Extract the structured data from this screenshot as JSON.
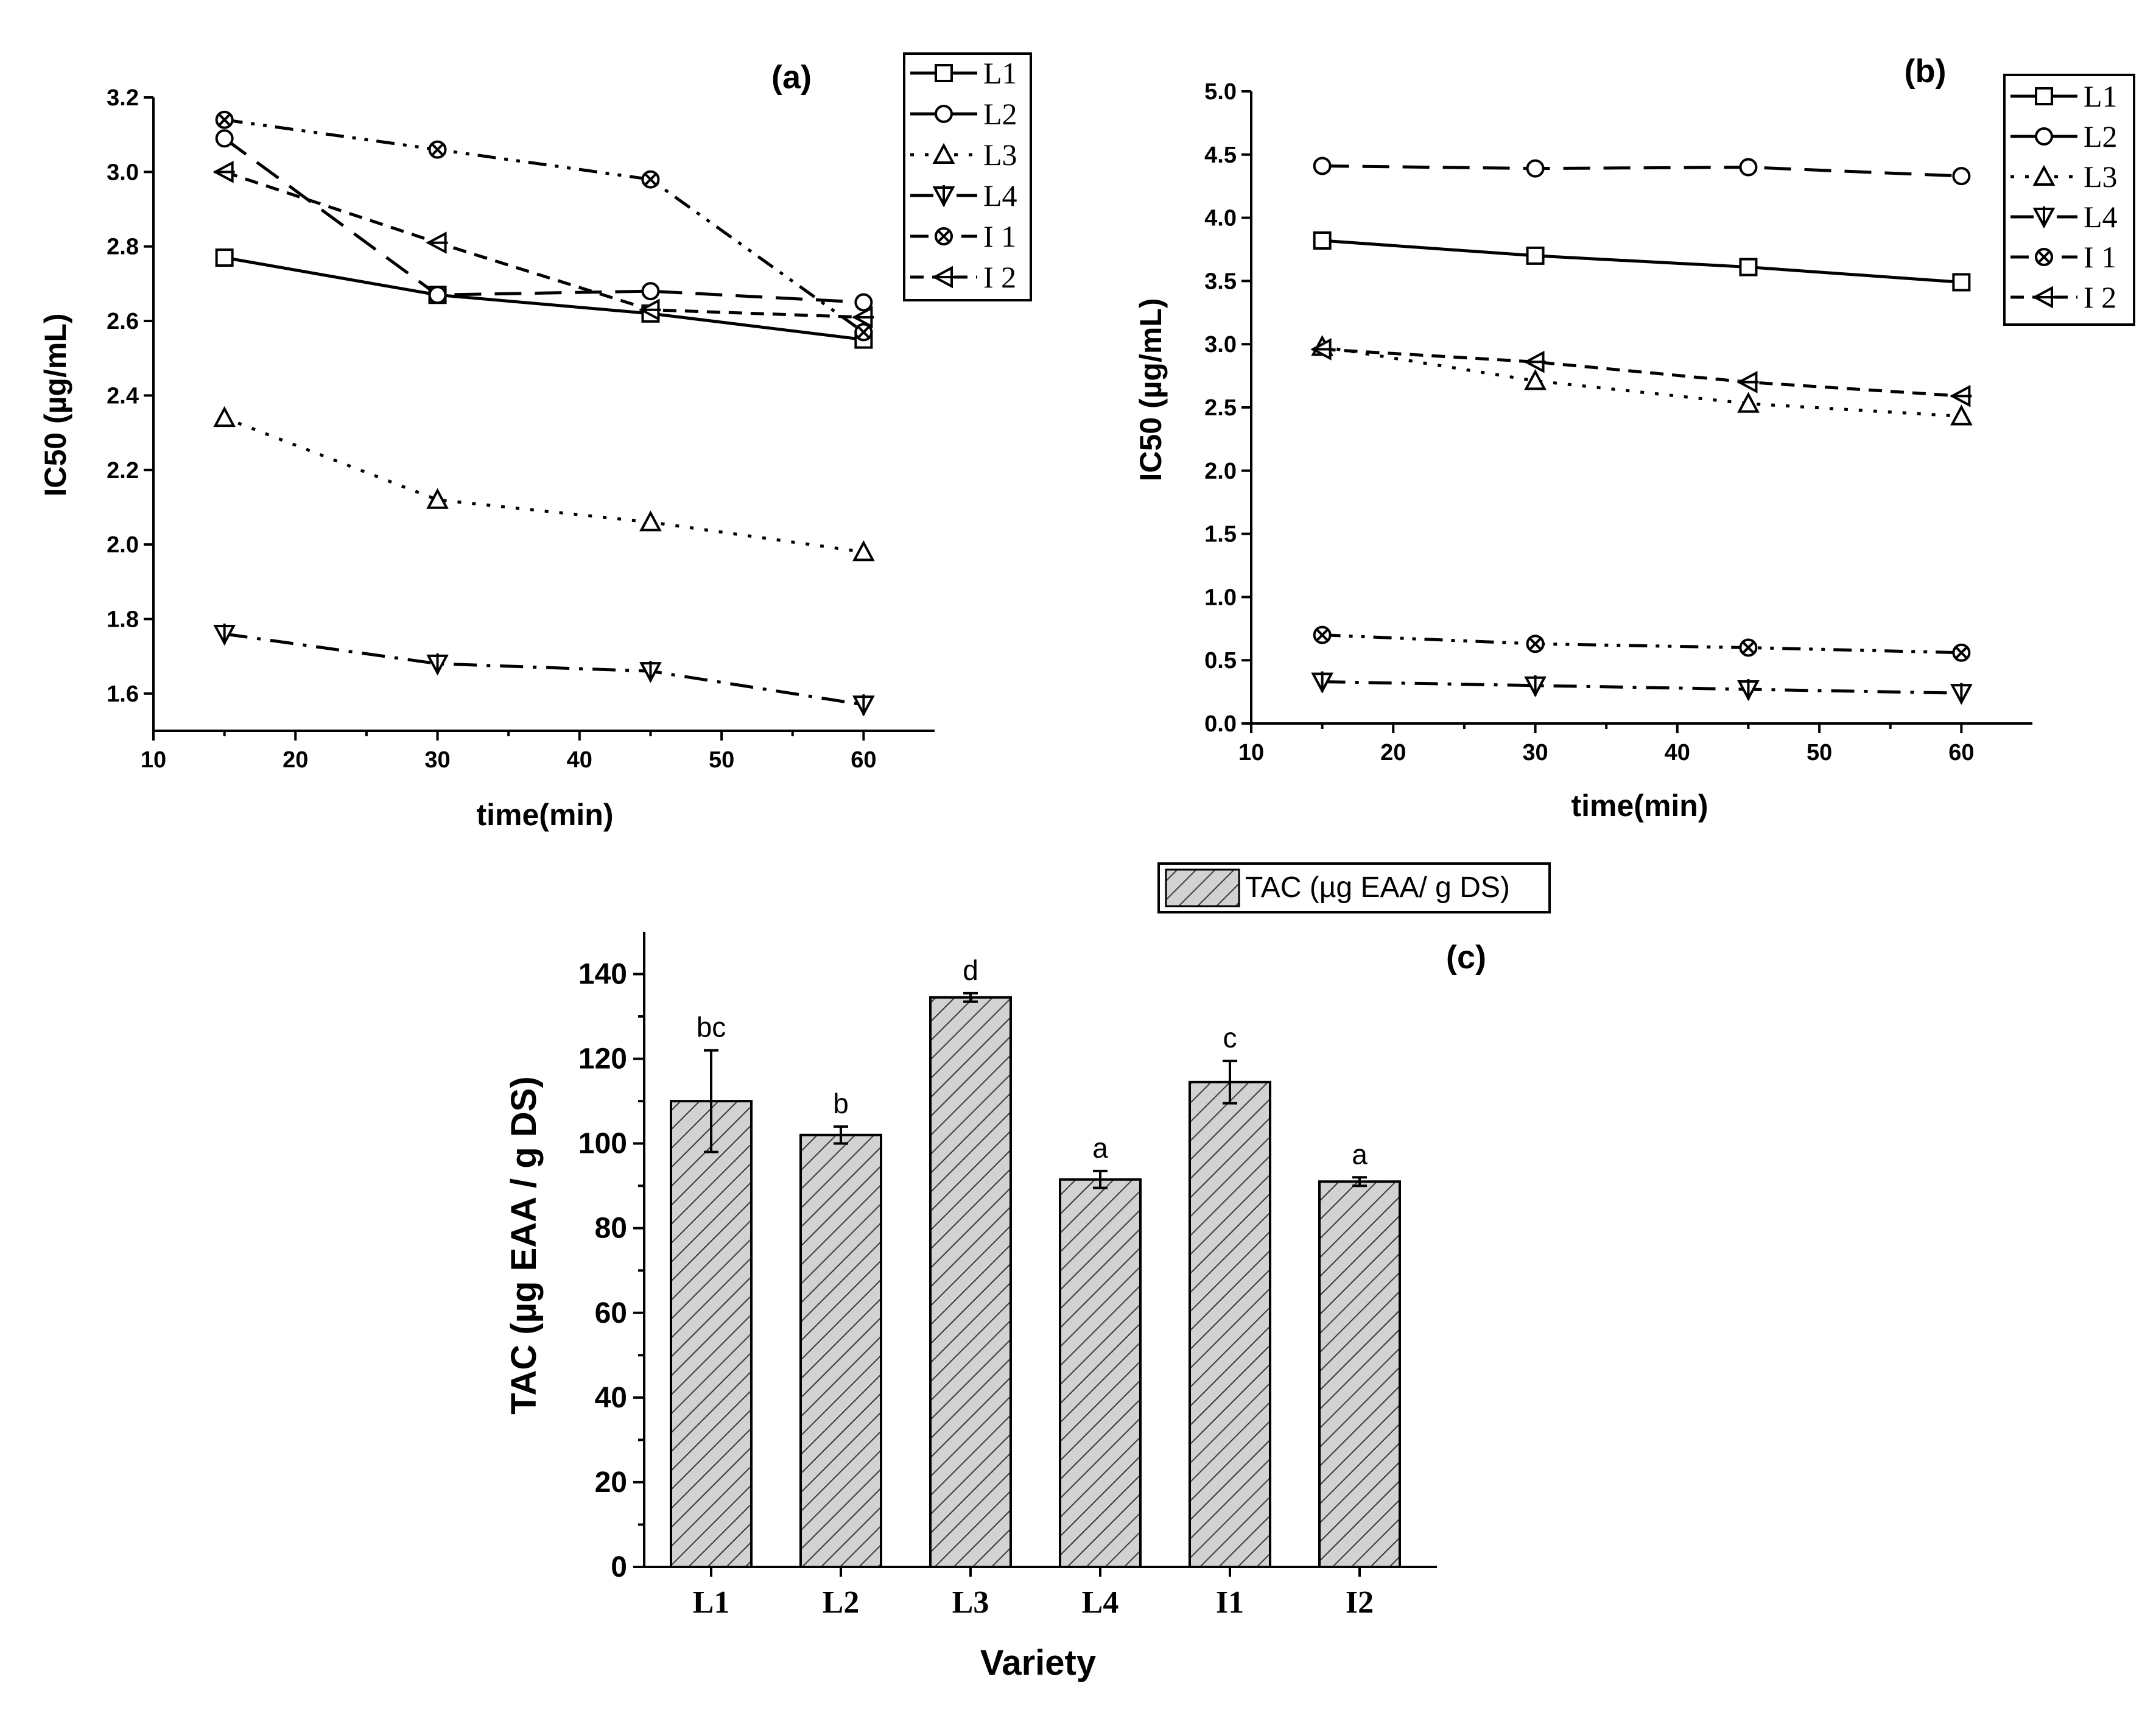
{
  "chart_data": [
    {
      "type": "line",
      "title": "(a)",
      "xlabel": "time(min)",
      "ylabel": "IC50 (µg/mL)",
      "xlim": [
        10,
        65
      ],
      "ylim": [
        1.5,
        3.2
      ],
      "xticks": [
        10,
        20,
        30,
        40,
        50,
        60
      ],
      "yticks": [
        1.6,
        1.8,
        2.0,
        2.2,
        2.4,
        2.6,
        2.8,
        3.0,
        3.2
      ],
      "ytick_labels": [
        "1.6",
        "1.8",
        "2.0",
        "2.2",
        "2.4",
        "2.6",
        "2.8",
        "3.0",
        "3.2"
      ],
      "x": [
        15,
        30,
        45,
        60
      ],
      "legend_position": "top-right",
      "series": [
        {
          "name": "L1",
          "values": [
            2.77,
            2.67,
            2.62,
            2.55
          ],
          "marker": "square",
          "dash": "solid"
        },
        {
          "name": "L2",
          "values": [
            3.09,
            2.67,
            2.68,
            2.65
          ],
          "marker": "circle",
          "dash": "dash"
        },
        {
          "name": "L3",
          "values": [
            2.34,
            2.12,
            2.06,
            1.98
          ],
          "marker": "triangle",
          "dash": "dot"
        },
        {
          "name": "L4",
          "values": [
            1.76,
            1.68,
            1.66,
            1.57
          ],
          "marker": "tridown",
          "dash": "dashdot"
        },
        {
          "name": "I 1",
          "values": [
            3.14,
            3.06,
            2.98,
            2.57
          ],
          "marker": "xcircle",
          "dash": "dashdotdot"
        },
        {
          "name": "I 2",
          "values": [
            3.0,
            2.81,
            2.63,
            2.61
          ],
          "marker": "tleft",
          "dash": "shortdash"
        }
      ]
    },
    {
      "type": "line",
      "title": "(b)",
      "xlabel": "time(min)",
      "ylabel": "IC50 (µg/mL)",
      "xlim": [
        10,
        65
      ],
      "ylim": [
        0,
        5
      ],
      "xticks": [
        10,
        20,
        30,
        40,
        50,
        60
      ],
      "yticks": [
        0,
        0.5,
        1.0,
        1.5,
        2.0,
        2.5,
        3.0,
        3.5,
        4.0,
        4.5,
        5.0
      ],
      "ytick_labels": [
        "0.0",
        "0.5",
        "1.0",
        "1.5",
        "2.0",
        "2.5",
        "3.0",
        "3.5",
        "4.0",
        "4.5",
        "5.0"
      ],
      "x": [
        15,
        30,
        45,
        60
      ],
      "legend_position": "top-right",
      "series": [
        {
          "name": "L1",
          "values": [
            3.82,
            3.7,
            3.61,
            3.49
          ],
          "marker": "square",
          "dash": "solid"
        },
        {
          "name": "L2",
          "values": [
            4.41,
            4.39,
            4.4,
            4.33
          ],
          "marker": "circle",
          "dash": "dash"
        },
        {
          "name": "L3",
          "values": [
            2.98,
            2.71,
            2.53,
            2.43
          ],
          "marker": "triangle",
          "dash": "dot"
        },
        {
          "name": "L4",
          "values": [
            0.33,
            0.3,
            0.27,
            0.24
          ],
          "marker": "tridown",
          "dash": "dashdot"
        },
        {
          "name": "I 1",
          "values": [
            0.7,
            0.63,
            0.6,
            0.56
          ],
          "marker": "xcircle",
          "dash": "dashdotdot"
        },
        {
          "name": "I 2",
          "values": [
            2.96,
            2.86,
            2.7,
            2.59
          ],
          "marker": "tleft",
          "dash": "shortdash"
        }
      ]
    },
    {
      "type": "bar",
      "title": "(c)",
      "xlabel": "Variety",
      "ylabel": "TAC (µg EAA / g DS)",
      "legend_label": "TAC (µg EAA/ g DS)",
      "legend_position": "top-center",
      "ylim": [
        0,
        150
      ],
      "yticks": [
        0,
        20,
        40,
        60,
        80,
        100,
        120,
        140
      ],
      "categories": [
        "L1",
        "L2",
        "L3",
        "L4",
        "I1",
        "I2"
      ],
      "values": [
        110,
        102,
        134.5,
        91.5,
        114.5,
        91
      ],
      "errors": [
        12,
        2,
        1,
        2,
        5,
        1
      ],
      "significance": [
        "bc",
        "b",
        "d",
        "a",
        "c",
        "a"
      ]
    }
  ]
}
